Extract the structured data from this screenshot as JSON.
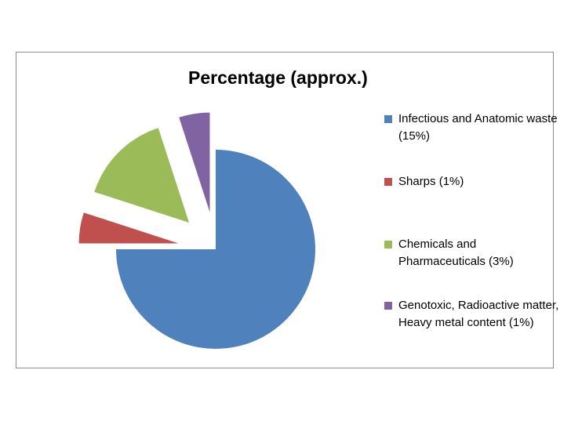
{
  "chart_data": {
    "type": "pie",
    "title": "Percentage (approx.)",
    "legend_position": "right",
    "exploded": true,
    "slices": [
      {
        "label": "Infectious and Anatomic waste (15%)",
        "value": 75,
        "color": "#4f81bd",
        "exploded": false
      },
      {
        "label": "Sharps (1%)",
        "value": 5,
        "color": "#c0504d",
        "exploded": true
      },
      {
        "label": "Chemicals and Pharmaceuticals (3%)",
        "value": 15,
        "color": "#9bbb59",
        "exploded": true
      },
      {
        "label": "Genotoxic, Radioactive matter, Heavy metal content (1%)",
        "value": 5,
        "color": "#8064a2",
        "exploded": true
      }
    ]
  }
}
